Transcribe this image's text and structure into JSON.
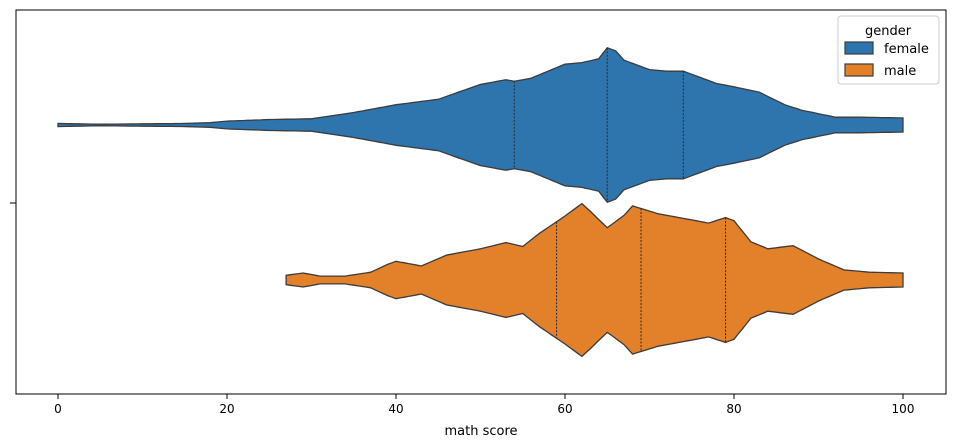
{
  "chart_data": {
    "type": "violin",
    "orientation": "horizontal",
    "title": "",
    "xlabel": "math score",
    "ylabel": "",
    "xlim": [
      -5,
      105
    ],
    "x_ticks": [
      0,
      20,
      40,
      60,
      80,
      100
    ],
    "x_tick_labels": [
      "0",
      "20",
      "40",
      "60",
      "80",
      "100"
    ],
    "grid": false,
    "legend": {
      "title": "gender",
      "placement": "top-right",
      "entries": [
        {
          "label": "female",
          "color": "#2e75ae"
        },
        {
          "label": "male",
          "color": "#e3802a"
        }
      ]
    },
    "series": [
      {
        "name": "female",
        "color": "#2e75ae",
        "side": "upper",
        "min": 0,
        "max": 100,
        "quartiles": [
          54,
          65,
          74
        ],
        "density_profile": [
          [
            0,
            0.02
          ],
          [
            5,
            0.01
          ],
          [
            10,
            0.015
          ],
          [
            15,
            0.02
          ],
          [
            18,
            0.03
          ],
          [
            20,
            0.05
          ],
          [
            25,
            0.07
          ],
          [
            30,
            0.08
          ],
          [
            35,
            0.16
          ],
          [
            40,
            0.26
          ],
          [
            45,
            0.33
          ],
          [
            50,
            0.52
          ],
          [
            53,
            0.58
          ],
          [
            54,
            0.56
          ],
          [
            56,
            0.6
          ],
          [
            58,
            0.69
          ],
          [
            60,
            0.78
          ],
          [
            62,
            0.8
          ],
          [
            64,
            0.85
          ],
          [
            65,
            0.99
          ],
          [
            66,
            0.95
          ],
          [
            67,
            0.83
          ],
          [
            70,
            0.71
          ],
          [
            72,
            0.69
          ],
          [
            74,
            0.69
          ],
          [
            76,
            0.61
          ],
          [
            78,
            0.53
          ],
          [
            80,
            0.49
          ],
          [
            83,
            0.42
          ],
          [
            86,
            0.26
          ],
          [
            88,
            0.19
          ],
          [
            92,
            0.1
          ],
          [
            95,
            0.1
          ],
          [
            100,
            0.09
          ]
        ]
      },
      {
        "name": "male",
        "color": "#e3802a",
        "side": "lower",
        "min": 27,
        "max": 100,
        "quartiles": [
          59,
          69,
          79
        ],
        "density_profile": [
          [
            27,
            0.06
          ],
          [
            29,
            0.09
          ],
          [
            31,
            0.05
          ],
          [
            34,
            0.05
          ],
          [
            37,
            0.1
          ],
          [
            39,
            0.2
          ],
          [
            40,
            0.24
          ],
          [
            43,
            0.18
          ],
          [
            46,
            0.32
          ],
          [
            50,
            0.4
          ],
          [
            53,
            0.48
          ],
          [
            55,
            0.43
          ],
          [
            57,
            0.6
          ],
          [
            60,
            0.82
          ],
          [
            62,
            0.98
          ],
          [
            63,
            0.88
          ],
          [
            65,
            0.67
          ],
          [
            67,
            0.83
          ],
          [
            68,
            0.95
          ],
          [
            71,
            0.85
          ],
          [
            74,
            0.79
          ],
          [
            77,
            0.73
          ],
          [
            79,
            0.8
          ],
          [
            80,
            0.76
          ],
          [
            82,
            0.49
          ],
          [
            84,
            0.4
          ],
          [
            87,
            0.44
          ],
          [
            90,
            0.27
          ],
          [
            93,
            0.13
          ],
          [
            96,
            0.1
          ],
          [
            100,
            0.09
          ]
        ]
      }
    ]
  }
}
